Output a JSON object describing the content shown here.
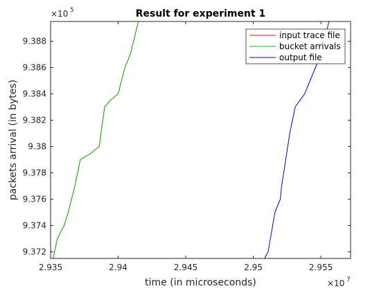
{
  "chart_data": {
    "type": "line",
    "title": "Result for experiment 1",
    "xlabel": "time (in microseconds)",
    "ylabel": "packets arrival (in bytes)",
    "x_exponent": {
      "base": "×10",
      "power": "7"
    },
    "y_exponent": {
      "base": "×10",
      "power": "5"
    },
    "xlim": [
      29350000,
      29572000
    ],
    "ylim": [
      937150,
      938950
    ],
    "x_ticks": [
      29350000,
      29400000,
      29450000,
      29500000,
      29550000
    ],
    "x_tick_labels": [
      "2.935",
      "2.94",
      "2.945",
      "2.95",
      "2.955"
    ],
    "y_ticks": [
      937200,
      937400,
      937600,
      937800,
      938000,
      938200,
      938400,
      938600,
      938800
    ],
    "y_tick_labels": [
      "9.372",
      "9.374",
      "9.376",
      "9.378",
      "9.38",
      "9.382",
      "9.384",
      "9.386",
      "9.388"
    ],
    "grid": false,
    "legend_position": "top-right",
    "series": [
      {
        "name": "input trace file",
        "color": "#ff0000",
        "points": [
          [
            29351000,
            937110
          ],
          [
            29355000,
            937300
          ],
          [
            29360000,
            937400
          ],
          [
            29363000,
            937500
          ],
          [
            29368000,
            937700
          ],
          [
            29372000,
            937900
          ],
          [
            29380000,
            937950
          ],
          [
            29386000,
            938000
          ],
          [
            29390000,
            938300
          ],
          [
            29394000,
            938350
          ],
          [
            29400000,
            938400
          ],
          [
            29405000,
            938600
          ],
          [
            29409000,
            938700
          ],
          [
            29415000,
            938950
          ],
          [
            29417000,
            939010
          ]
        ]
      },
      {
        "name": "bucket arrivals",
        "color": "#00c800",
        "points": [
          [
            29351000,
            937110
          ],
          [
            29355000,
            937300
          ],
          [
            29360000,
            937400
          ],
          [
            29363000,
            937500
          ],
          [
            29368000,
            937700
          ],
          [
            29372000,
            937900
          ],
          [
            29380000,
            937950
          ],
          [
            29386000,
            938000
          ],
          [
            29390000,
            938300
          ],
          [
            29394000,
            938350
          ],
          [
            29400000,
            938400
          ],
          [
            29405000,
            938600
          ],
          [
            29409000,
            938700
          ],
          [
            29415000,
            938950
          ],
          [
            29417000,
            939010
          ]
        ]
      },
      {
        "name": "output file",
        "color": "#0000c8",
        "points": [
          [
            29506000,
            937110
          ],
          [
            29511000,
            937200
          ],
          [
            29516000,
            937500
          ],
          [
            29520000,
            937600
          ],
          [
            29521000,
            937700
          ],
          [
            29524000,
            937900
          ],
          [
            29527000,
            938100
          ],
          [
            29531000,
            938300
          ],
          [
            29538000,
            938400
          ],
          [
            29542000,
            938500
          ],
          [
            29546000,
            938600
          ],
          [
            29550000,
            938700
          ],
          [
            29556000,
            938950
          ],
          [
            29558000,
            939010
          ]
        ]
      }
    ]
  }
}
